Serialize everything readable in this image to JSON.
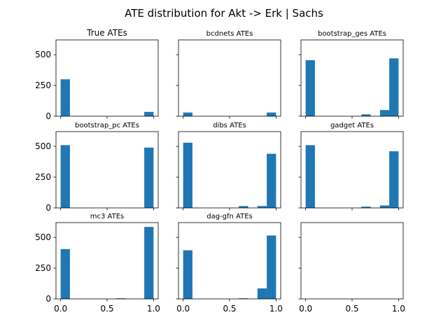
{
  "chart_data": {
    "type": "bar",
    "title": "ATE distribution for Akt -> Erk | Sachs",
    "grid": false,
    "bar_color": "#1f77b4",
    "xlim": [
      -0.05,
      1.05
    ],
    "ylim": [
      0,
      620
    ],
    "x_ticks": [
      0.0,
      0.5,
      1.0
    ],
    "x_tick_labels": [
      "0.0",
      "0.5",
      "1.0"
    ],
    "y_ticks": [
      0,
      250,
      500
    ],
    "y_tick_labels": [
      "0",
      "250",
      "500"
    ],
    "bins": [
      0.0,
      0.1,
      0.2,
      0.3,
      0.4,
      0.5,
      0.6,
      0.7,
      0.8,
      0.9,
      1.0
    ],
    "panels": [
      {
        "title": "True ATEs",
        "counts": [
          300,
          0,
          0,
          0,
          0,
          0,
          0,
          0,
          0,
          35
        ]
      },
      {
        "title": "bcdnets ATEs",
        "counts": [
          30,
          0,
          0,
          0,
          0,
          0,
          0,
          0,
          0,
          30
        ]
      },
      {
        "title": "bootstrap_ges ATEs",
        "counts": [
          455,
          0,
          0,
          0,
          0,
          0,
          15,
          0,
          50,
          470
        ]
      },
      {
        "title": "bootstrap_pc ATEs",
        "counts": [
          510,
          0,
          0,
          0,
          0,
          0,
          0,
          0,
          0,
          490
        ]
      },
      {
        "title": "dibs ATEs",
        "counts": [
          530,
          0,
          0,
          0,
          0,
          0,
          15,
          0,
          15,
          440
        ]
      },
      {
        "title": "gadget ATEs",
        "counts": [
          510,
          0,
          0,
          0,
          0,
          0,
          10,
          0,
          20,
          460
        ]
      },
      {
        "title": "mc3 ATEs",
        "counts": [
          405,
          0,
          0,
          0,
          0,
          0,
          5,
          0,
          0,
          585
        ]
      },
      {
        "title": "dag-gfn ATEs",
        "counts": [
          395,
          0,
          0,
          0,
          0,
          0,
          5,
          0,
          85,
          515
        ]
      },
      {
        "title": "",
        "counts": []
      }
    ]
  }
}
